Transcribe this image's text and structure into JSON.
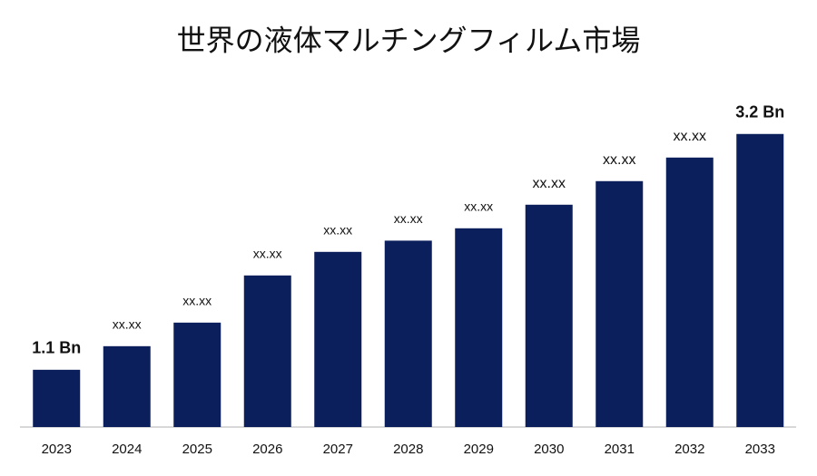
{
  "chart_data": {
    "type": "bar",
    "title": "世界の液体マルチングフィルム市場",
    "categories": [
      "2023",
      "2024",
      "2025",
      "2026",
      "2027",
      "2028",
      "2029",
      "2030",
      "2031",
      "2032",
      "2033"
    ],
    "values": [
      1.1,
      1.31,
      1.52,
      1.94,
      2.15,
      2.25,
      2.36,
      2.57,
      2.78,
      2.99,
      3.2
    ],
    "value_labels": [
      "1.1 Bn",
      "xx.xx",
      "xx.xx",
      "xx.xx",
      "xx.xx",
      "xx.xx",
      "xx.xx",
      "xx.xx",
      "xx.xx",
      "xx.xx",
      "3.2 Bn"
    ],
    "color": "#0b1f5c",
    "ylim": [
      0.59,
      3.4
    ]
  }
}
